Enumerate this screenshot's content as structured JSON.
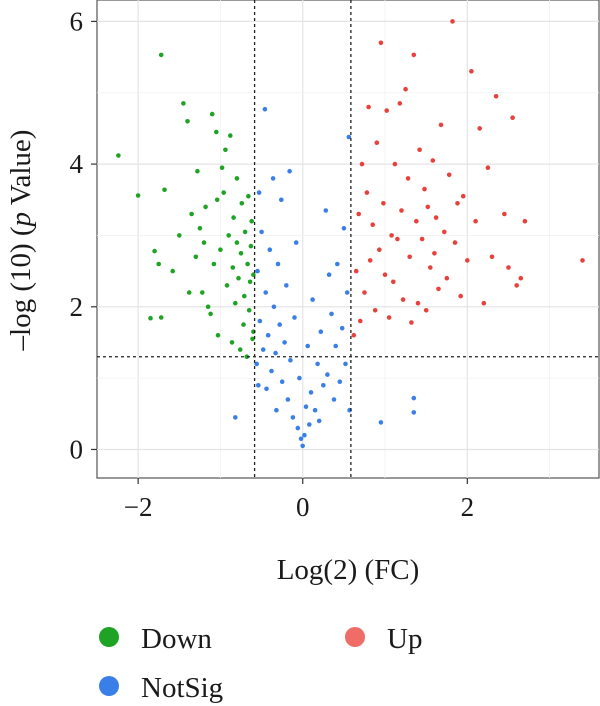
{
  "chart_data": {
    "type": "scatter",
    "subtype": "volcano",
    "xlabel": "Log(2) (FC)",
    "ylabel_parts": [
      "–log (10) (",
      "p",
      " Value)"
    ],
    "xlim": [
      -2.5,
      3.6
    ],
    "ylim": [
      -0.4,
      6.3
    ],
    "xticks": [
      -2,
      0,
      2
    ],
    "yticks": [
      0,
      2,
      4,
      6
    ],
    "xtick_labels": [
      "−2",
      "0",
      "2"
    ],
    "ytick_labels": [
      "0",
      "2",
      "4",
      "6"
    ],
    "grid": true,
    "thresholds": {
      "x": [
        -0.585,
        0.585
      ],
      "y": 1.3
    },
    "legend_position": "bottom",
    "series": [
      {
        "name": "Down",
        "color": "#1fa324",
        "points": [
          [
            -2.24,
            4.12
          ],
          [
            -2.0,
            3.56
          ],
          [
            -1.72,
            5.53
          ],
          [
            -1.68,
            3.64
          ],
          [
            -1.72,
            1.85
          ],
          [
            -1.85,
            1.84
          ],
          [
            -1.75,
            2.6
          ],
          [
            -1.8,
            2.78
          ],
          [
            -1.58,
            2.5
          ],
          [
            -1.5,
            3.0
          ],
          [
            -1.45,
            4.85
          ],
          [
            -1.4,
            4.6
          ],
          [
            -1.38,
            2.2
          ],
          [
            -1.35,
            3.3
          ],
          [
            -1.3,
            2.7
          ],
          [
            -1.28,
            3.9
          ],
          [
            -1.25,
            3.1
          ],
          [
            -1.22,
            2.2
          ],
          [
            -1.2,
            2.9
          ],
          [
            -1.18,
            3.4
          ],
          [
            -1.15,
            2.0
          ],
          [
            -1.12,
            1.9
          ],
          [
            -1.1,
            4.7
          ],
          [
            -1.08,
            2.6
          ],
          [
            -1.05,
            4.45
          ],
          [
            -1.04,
            3.5
          ],
          [
            -1.03,
            1.6
          ],
          [
            -1.0,
            2.8
          ],
          [
            -0.98,
            3.95
          ],
          [
            -0.96,
            3.6
          ],
          [
            -0.94,
            4.2
          ],
          [
            -0.92,
            2.3
          ],
          [
            -0.9,
            3.0
          ],
          [
            -0.88,
            4.4
          ],
          [
            -0.86,
            1.5
          ],
          [
            -0.85,
            2.55
          ],
          [
            -0.84,
            3.25
          ],
          [
            -0.82,
            2.05
          ],
          [
            -0.8,
            2.9
          ],
          [
            -0.8,
            3.8
          ],
          [
            -0.78,
            2.4
          ],
          [
            -0.76,
            1.4
          ],
          [
            -0.75,
            2.75
          ],
          [
            -0.74,
            3.45
          ],
          [
            -0.72,
            1.75
          ],
          [
            -0.71,
            2.15
          ],
          [
            -0.7,
            3.05
          ],
          [
            -0.68,
            1.3
          ],
          [
            -0.67,
            2.6
          ],
          [
            -0.66,
            3.55
          ],
          [
            -0.65,
            1.95
          ],
          [
            -0.64,
            2.35
          ],
          [
            -0.63,
            2.85
          ],
          [
            -0.62,
            3.2
          ],
          [
            -0.61,
            1.55
          ],
          [
            -0.6,
            2.45
          ],
          [
            -0.6,
            1.65
          ]
        ]
      },
      {
        "name": "NotSig",
        "color": "#3a7fe8",
        "points": [
          [
            -0.82,
            0.45
          ],
          [
            -0.56,
            1.2
          ],
          [
            -0.55,
            2.5
          ],
          [
            -0.54,
            0.9
          ],
          [
            -0.53,
            3.6
          ],
          [
            -0.52,
            1.8
          ],
          [
            -0.5,
            3.05
          ],
          [
            -0.48,
            1.4
          ],
          [
            -0.46,
            4.77
          ],
          [
            -0.45,
            2.2
          ],
          [
            -0.44,
            0.85
          ],
          [
            -0.42,
            1.6
          ],
          [
            -0.4,
            2.8
          ],
          [
            -0.38,
            1.1
          ],
          [
            -0.36,
            3.8
          ],
          [
            -0.35,
            2.0
          ],
          [
            -0.33,
            1.35
          ],
          [
            -0.32,
            0.55
          ],
          [
            -0.3,
            2.6
          ],
          [
            -0.28,
            1.75
          ],
          [
            -0.26,
            3.5
          ],
          [
            -0.25,
            0.95
          ],
          [
            -0.22,
            1.5
          ],
          [
            -0.2,
            2.3
          ],
          [
            -0.18,
            0.7
          ],
          [
            -0.16,
            3.9
          ],
          [
            -0.15,
            1.25
          ],
          [
            -0.12,
            0.45
          ],
          [
            -0.1,
            1.85
          ],
          [
            -0.08,
            2.9
          ],
          [
            -0.06,
            0.3
          ],
          [
            -0.04,
            1.0
          ],
          [
            -0.02,
            0.15
          ],
          [
            0.0,
            0.05
          ],
          [
            0.02,
            0.2
          ],
          [
            0.04,
            0.6
          ],
          [
            0.06,
            1.45
          ],
          [
            0.08,
            0.35
          ],
          [
            0.1,
            0.8
          ],
          [
            0.12,
            2.1
          ],
          [
            0.15,
            0.55
          ],
          [
            0.18,
            1.2
          ],
          [
            0.2,
            0.4
          ],
          [
            0.22,
            1.65
          ],
          [
            0.25,
            0.9
          ],
          [
            0.28,
            3.35
          ],
          [
            0.3,
            1.05
          ],
          [
            0.32,
            2.45
          ],
          [
            0.35,
            1.9
          ],
          [
            0.38,
            0.7
          ],
          [
            0.4,
            1.45
          ],
          [
            0.42,
            2.6
          ],
          [
            0.45,
            0.95
          ],
          [
            0.48,
            1.7
          ],
          [
            0.5,
            3.1
          ],
          [
            0.52,
            1.2
          ],
          [
            0.54,
            2.2
          ],
          [
            0.56,
            4.38
          ],
          [
            0.57,
            0.55
          ],
          [
            0.95,
            0.38
          ],
          [
            1.35,
            0.72
          ],
          [
            1.35,
            0.52
          ]
        ]
      },
      {
        "name": "Up",
        "color": "#e8413c",
        "points": [
          [
            0.62,
            1.6
          ],
          [
            0.65,
            2.5
          ],
          [
            0.68,
            3.3
          ],
          [
            0.7,
            1.8
          ],
          [
            0.72,
            4.0
          ],
          [
            0.75,
            2.2
          ],
          [
            0.78,
            3.6
          ],
          [
            0.8,
            4.8
          ],
          [
            0.82,
            2.65
          ],
          [
            0.85,
            3.15
          ],
          [
            0.88,
            1.95
          ],
          [
            0.9,
            4.3
          ],
          [
            0.93,
            2.8
          ],
          [
            0.95,
            5.7
          ],
          [
            0.98,
            3.45
          ],
          [
            1.0,
            2.45
          ],
          [
            1.02,
            4.75
          ],
          [
            1.05,
            1.85
          ],
          [
            1.08,
            3.0
          ],
          [
            1.1,
            2.35
          ],
          [
            1.12,
            4.0
          ],
          [
            1.15,
            2.95
          ],
          [
            1.18,
            4.85
          ],
          [
            1.2,
            3.35
          ],
          [
            1.22,
            2.1
          ],
          [
            1.25,
            5.05
          ],
          [
            1.28,
            3.8
          ],
          [
            1.3,
            2.7
          ],
          [
            1.32,
            1.78
          ],
          [
            1.35,
            5.53
          ],
          [
            1.38,
            3.2
          ],
          [
            1.4,
            2.05
          ],
          [
            1.42,
            4.2
          ],
          [
            1.45,
            2.95
          ],
          [
            1.48,
            3.65
          ],
          [
            1.5,
            1.95
          ],
          [
            1.52,
            3.4
          ],
          [
            1.55,
            2.55
          ],
          [
            1.58,
            4.05
          ],
          [
            1.6,
            2.75
          ],
          [
            1.62,
            3.25
          ],
          [
            1.65,
            2.25
          ],
          [
            1.68,
            4.55
          ],
          [
            1.72,
            3.05
          ],
          [
            1.75,
            2.4
          ],
          [
            1.78,
            3.85
          ],
          [
            1.82,
            6.0
          ],
          [
            1.85,
            2.9
          ],
          [
            1.88,
            3.45
          ],
          [
            1.92,
            2.15
          ],
          [
            1.95,
            3.55
          ],
          [
            2.0,
            2.65
          ],
          [
            2.05,
            5.3
          ],
          [
            2.1,
            3.2
          ],
          [
            2.15,
            4.5
          ],
          [
            2.2,
            2.05
          ],
          [
            2.25,
            3.95
          ],
          [
            2.3,
            2.7
          ],
          [
            2.35,
            4.95
          ],
          [
            2.45,
            3.3
          ],
          [
            2.5,
            2.55
          ],
          [
            2.55,
            4.65
          ],
          [
            2.6,
            2.3
          ],
          [
            2.65,
            2.4
          ],
          [
            2.7,
            3.2
          ],
          [
            3.4,
            2.65
          ]
        ]
      }
    ],
    "legend": [
      {
        "label": "Down",
        "color": "#1fa324"
      },
      {
        "label": "NotSig",
        "color": "#3a7fe8"
      },
      {
        "label": "Up",
        "color": "#f06c66"
      }
    ]
  }
}
